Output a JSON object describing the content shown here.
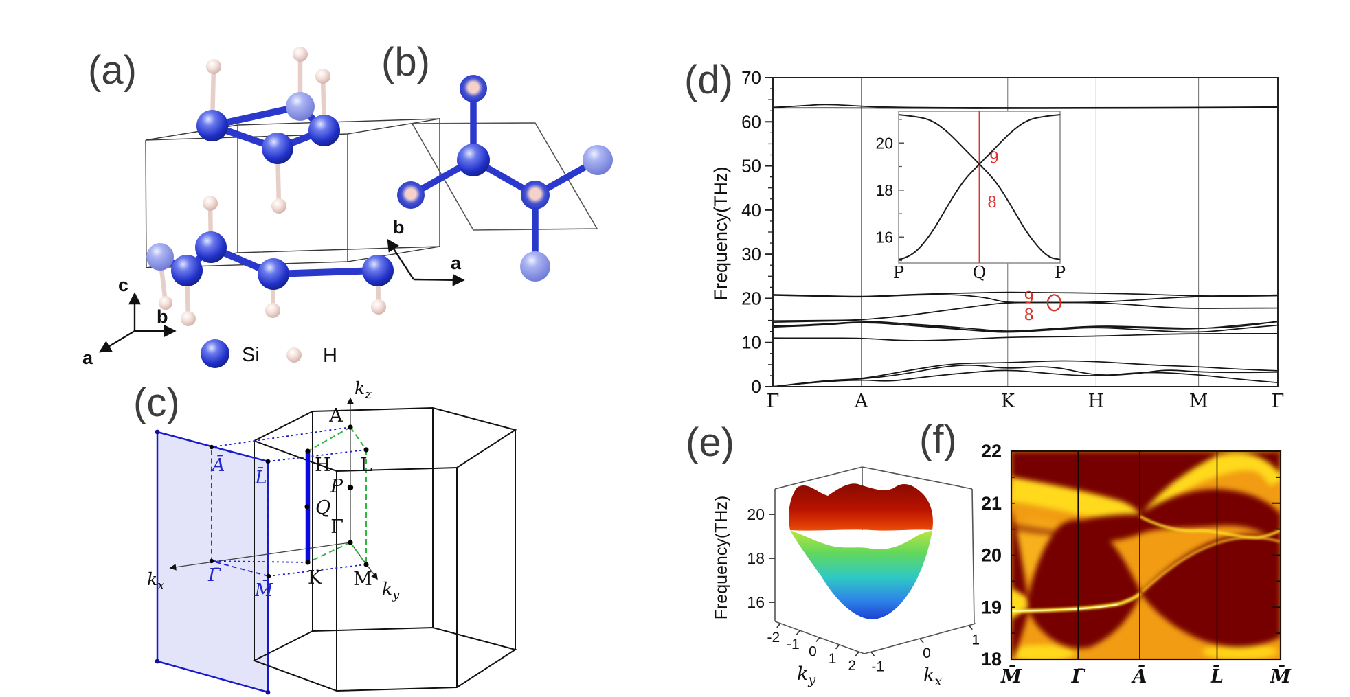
{
  "panel_labels": {
    "a": "(a)",
    "b": "(b)",
    "c": "(c)",
    "d": "(d)",
    "e": "(e)",
    "f": "(f)"
  },
  "panel_a": {
    "legend": [
      {
        "symbol": "si-sphere",
        "label": "Si"
      },
      {
        "symbol": "h-sphere",
        "label": "H"
      }
    ],
    "axes": {
      "a": "a",
      "b": "b",
      "c": "c"
    }
  },
  "panel_b": {
    "axes": {
      "a": "a",
      "b": "b"
    }
  },
  "panel_c": {
    "axis_labels": {
      "kx": "kx",
      "ky": "ky",
      "kz": "kz"
    },
    "bulk_points": [
      "A",
      "H",
      "L",
      "P",
      "Q",
      "Γ",
      "K",
      "M"
    ],
    "surface_points": [
      "Ā",
      "L̄",
      "Γ̄",
      "M̄"
    ],
    "colors": {
      "plane": "#1818cc",
      "bz_path": "#2fb63c",
      "nodal_line": "#0a0ae0"
    }
  },
  "chart_data": [
    {
      "id": "panel-d",
      "type": "line",
      "ylabel": "Frequency(THz)",
      "ylim": [
        0,
        70
      ],
      "yticks": [
        0,
        10,
        20,
        30,
        40,
        50,
        60,
        70
      ],
      "x_path": [
        {
          "label": "Γ",
          "pos": 0
        },
        {
          "label": "A",
          "pos": 0.175
        },
        {
          "label": "K",
          "pos": 0.465
        },
        {
          "label": "H",
          "pos": 0.64
        },
        {
          "label": "M",
          "pos": 0.843
        },
        {
          "label": "Γ",
          "pos": 1
        }
      ],
      "grid": "vertical-at-path-points",
      "line_color": "#161616",
      "annotations": {
        "upper_band_label": "9",
        "lower_band_label": "8",
        "labels_x": 0.507,
        "circle": {
          "x": 0.557,
          "freq": 19.0
        },
        "color": "#d93025",
        "degenerate_segment": {
          "from": "K",
          "to": "H",
          "freq": 19.05
        }
      },
      "bands": [
        [
          [
            0,
            0
          ],
          [
            0.06,
            0.8
          ],
          [
            0.175,
            1.6
          ],
          [
            0.23,
            1.1
          ],
          [
            0.3,
            2.2
          ],
          [
            0.38,
            3.1
          ],
          [
            0.465,
            3.9
          ],
          [
            0.55,
            2.9
          ],
          [
            0.64,
            2.3
          ],
          [
            0.74,
            3.4
          ],
          [
            0.843,
            2.7
          ],
          [
            0.93,
            1.6
          ],
          [
            1,
            0.9
          ]
        ],
        [
          [
            0,
            0
          ],
          [
            0.08,
            1.0
          ],
          [
            0.175,
            1.7
          ],
          [
            0.26,
            2.8
          ],
          [
            0.34,
            4.6
          ],
          [
            0.4,
            5.0
          ],
          [
            0.465,
            4.0
          ],
          [
            0.55,
            4.8
          ],
          [
            0.64,
            2.4
          ],
          [
            0.72,
            2.9
          ],
          [
            0.78,
            3.9
          ],
          [
            0.843,
            3.3
          ],
          [
            0.93,
            3.2
          ],
          [
            1,
            3.3
          ]
        ],
        [
          [
            0,
            0
          ],
          [
            0.1,
            1.4
          ],
          [
            0.175,
            1.7
          ],
          [
            0.28,
            3.9
          ],
          [
            0.36,
            5.3
          ],
          [
            0.465,
            5.4
          ],
          [
            0.56,
            5.9
          ],
          [
            0.64,
            5.7
          ],
          [
            0.75,
            4.9
          ],
          [
            0.843,
            4.5
          ],
          [
            0.93,
            3.9
          ],
          [
            1,
            3.6
          ]
        ],
        [
          [
            0,
            11.0
          ],
          [
            0.1,
            11.0
          ],
          [
            0.175,
            11.0
          ],
          [
            0.27,
            10.3
          ],
          [
            0.38,
            10.7
          ],
          [
            0.465,
            11.2
          ],
          [
            0.56,
            11.3
          ],
          [
            0.64,
            11.4
          ],
          [
            0.75,
            11.8
          ],
          [
            0.843,
            12.0
          ],
          [
            1,
            12.0
          ]
        ],
        [
          [
            0,
            13.5
          ],
          [
            0.1,
            13.9
          ],
          [
            0.175,
            14.7
          ],
          [
            0.3,
            13.6
          ],
          [
            0.4,
            12.7
          ],
          [
            0.465,
            12.2
          ],
          [
            0.56,
            12.9
          ],
          [
            0.64,
            13.5
          ],
          [
            0.75,
            12.7
          ],
          [
            0.843,
            12.2
          ],
          [
            0.93,
            13.2
          ],
          [
            1,
            13.9
          ]
        ],
        [
          [
            0,
            13.7
          ],
          [
            0.1,
            14.1
          ],
          [
            0.175,
            14.8
          ],
          [
            0.3,
            14.0
          ],
          [
            0.4,
            13.1
          ],
          [
            0.465,
            12.4
          ],
          [
            0.56,
            13.2
          ],
          [
            0.64,
            13.7
          ],
          [
            0.75,
            13.2
          ],
          [
            0.843,
            13.0
          ],
          [
            0.93,
            14.0
          ],
          [
            1,
            14.7
          ]
        ],
        [
          [
            0,
            14.6
          ],
          [
            0.1,
            14.8
          ],
          [
            0.175,
            15.0
          ],
          [
            0.28,
            14.1
          ],
          [
            0.38,
            12.9
          ],
          [
            0.465,
            12.3
          ],
          [
            0.55,
            13.0
          ],
          [
            0.64,
            13.8
          ],
          [
            0.74,
            13.5
          ],
          [
            0.843,
            13.1
          ],
          [
            0.93,
            13.6
          ],
          [
            1,
            14.8
          ]
        ],
        [
          [
            0,
            14.9
          ],
          [
            0.1,
            15.0
          ],
          [
            0.175,
            15.1
          ],
          [
            0.26,
            16.0
          ],
          [
            0.35,
            17.4
          ],
          [
            0.42,
            18.5
          ],
          [
            0.465,
            19.05
          ],
          [
            0.55,
            19.05
          ],
          [
            0.64,
            19.05
          ],
          [
            0.72,
            18.5
          ],
          [
            0.78,
            17.9
          ],
          [
            0.843,
            17.7
          ],
          [
            0.93,
            17.8
          ],
          [
            1,
            17.8
          ]
        ],
        [
          [
            0,
            20.7
          ],
          [
            0.1,
            20.5
          ],
          [
            0.175,
            20.25
          ],
          [
            0.28,
            20.8
          ],
          [
            0.36,
            20.9
          ],
          [
            0.42,
            20.2
          ],
          [
            0.445,
            19.5
          ],
          [
            0.465,
            19.05
          ],
          [
            0.55,
            19.05
          ],
          [
            0.64,
            19.1
          ],
          [
            0.72,
            19.6
          ],
          [
            0.78,
            20.1
          ],
          [
            0.843,
            20.4
          ],
          [
            0.93,
            20.5
          ],
          [
            1,
            20.6
          ]
        ],
        [
          [
            0,
            20.85
          ],
          [
            0.1,
            20.6
          ],
          [
            0.175,
            20.35
          ],
          [
            0.3,
            21.0
          ],
          [
            0.4,
            21.25
          ],
          [
            0.465,
            21.4
          ],
          [
            0.55,
            21.3
          ],
          [
            0.64,
            21.2
          ],
          [
            0.75,
            20.9
          ],
          [
            0.843,
            20.5
          ],
          [
            0.93,
            20.6
          ],
          [
            1,
            20.75
          ]
        ],
        [
          [
            0,
            63.25
          ],
          [
            0.06,
            63.6
          ],
          [
            0.1,
            63.95
          ],
          [
            0.15,
            63.7
          ],
          [
            0.2,
            63.35
          ],
          [
            0.3,
            63.2
          ],
          [
            0.5,
            63.15
          ],
          [
            0.7,
            63.2
          ],
          [
            0.843,
            63.25
          ],
          [
            1,
            63.35
          ]
        ],
        [
          [
            0,
            63.1
          ],
          [
            0.15,
            63.15
          ],
          [
            0.3,
            63.0
          ],
          [
            0.5,
            63.0
          ],
          [
            0.7,
            63.05
          ],
          [
            0.85,
            63.1
          ],
          [
            1,
            63.15
          ]
        ]
      ]
    },
    {
      "id": "panel-d-inset",
      "type": "line",
      "x_path": [
        {
          "label": "P",
          "pos": 0
        },
        {
          "label": "Q",
          "pos": 0.5
        },
        {
          "label": "P",
          "pos": 1
        }
      ],
      "ylim": [
        14.9,
        21.35
      ],
      "yticks": [
        16,
        18,
        20
      ],
      "red_guide_x": 0.5,
      "crossing": {
        "at": "Q",
        "freq": 19.1
      },
      "band_labels": {
        "upper": "9",
        "lower": "8"
      },
      "bands": [
        [
          [
            0,
            15.05
          ],
          [
            0.08,
            15.15
          ],
          [
            0.2,
            16.1
          ],
          [
            0.3,
            17.3
          ],
          [
            0.4,
            18.4
          ],
          [
            0.5,
            19.1
          ],
          [
            0.6,
            19.8
          ],
          [
            0.7,
            20.5
          ],
          [
            0.8,
            21.0
          ],
          [
            0.92,
            21.15
          ],
          [
            1,
            21.2
          ]
        ],
        [
          [
            0,
            21.2
          ],
          [
            0.08,
            21.15
          ],
          [
            0.2,
            21.0
          ],
          [
            0.3,
            20.5
          ],
          [
            0.4,
            19.8
          ],
          [
            0.5,
            19.1
          ],
          [
            0.6,
            18.4
          ],
          [
            0.7,
            17.3
          ],
          [
            0.8,
            16.1
          ],
          [
            0.92,
            15.15
          ],
          [
            1,
            15.05
          ]
        ]
      ]
    },
    {
      "id": "panel-e",
      "type": "surface",
      "zlabel": "Frequency(THz)",
      "zticks": [
        16,
        18,
        20
      ],
      "xlabel": "kx",
      "xticks": [
        -1,
        0,
        1
      ],
      "ylabel": "ky",
      "yticks": [
        -2,
        -1,
        0,
        1,
        2
      ],
      "z_range_shown": [
        15,
        21.5
      ],
      "description": "Phonon bands 8 (lower, rainbow) and 9 (upper, dark red) forming Dirac-cone touchings near 19 THz",
      "upper_surface_color": "dark red",
      "lower_surface_color": "rainbow blue-to-yellow"
    },
    {
      "id": "panel-f",
      "type": "heatmap",
      "ylim": [
        18,
        22
      ],
      "yticks": [
        18,
        19,
        20,
        21,
        22
      ],
      "xticklabels": [
        "M̄",
        "Γ̄",
        "Ā",
        "L̄",
        "M̄"
      ],
      "x_positions": [
        0,
        0.248,
        0.477,
        0.764,
        1
      ],
      "colormap": "hot (dark red bulk bands on orange background, bright yellow surface states)",
      "features": [
        "bright surface-state line near 19 THz running from M̄ through Γ̄ toward Ā",
        "Dirac-cone touching point at Ā near 19.3 THz",
        "bulk continuum pocket centered at Γ̄ spanning about 18-20.6 THz",
        "upper bulk bands 20.7-22 THz with surface branch pinching at Ā near 20.9 THz",
        "bulk pocket around L̄-M̄ spanning about 18.2-20 THz"
      ]
    }
  ]
}
